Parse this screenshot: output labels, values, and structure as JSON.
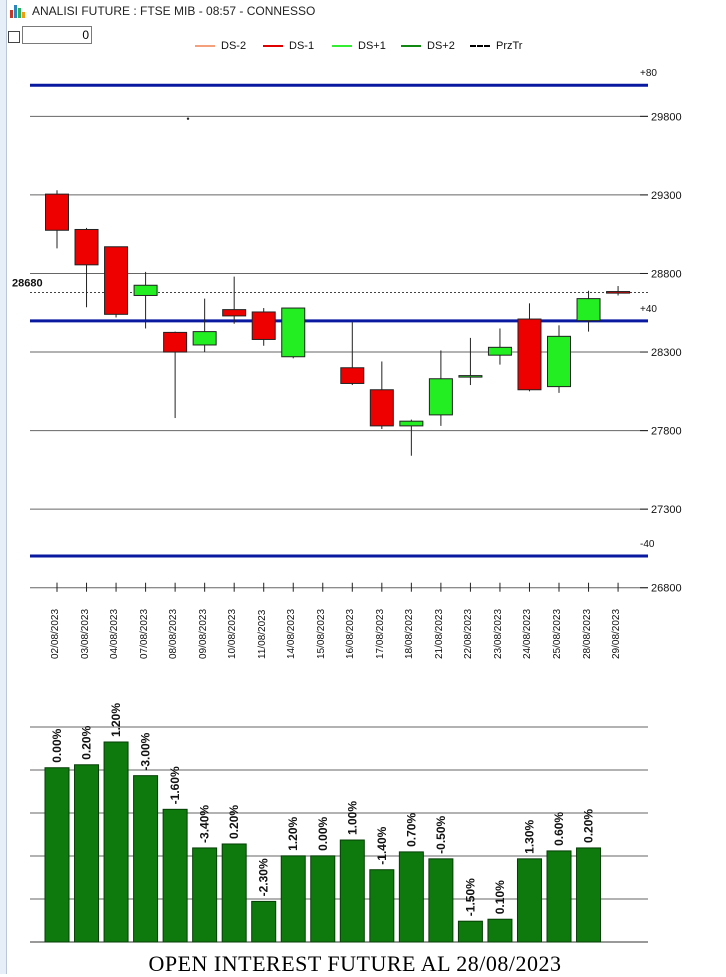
{
  "window": {
    "title": "ANALISI FUTURE : FTSE MIB - 08:57 - CONNESSO"
  },
  "controls": {
    "number_value": "0"
  },
  "legend": [
    {
      "label": "DS-2",
      "color": "#f4a07c",
      "style": "solid"
    },
    {
      "label": "DS-1",
      "color": "#e00000",
      "style": "solid"
    },
    {
      "label": "DS+1",
      "color": "#33ee33",
      "style": "solid"
    },
    {
      "label": "DS+2",
      "color": "#118811",
      "style": "solid"
    },
    {
      "label": "PrzTr",
      "color": "#000000",
      "style": "dashed"
    }
  ],
  "colors": {
    "up": "#22ee22",
    "down": "#ee0000",
    "band": "#0a1aa0",
    "bar": "#0e7a0e"
  },
  "chart_data": [
    {
      "type": "candlestick",
      "ylim": [
        26800,
        30000
      ],
      "yticks": [
        "29800",
        "29300",
        "28800",
        "28300",
        "27800",
        "27300",
        "26800"
      ],
      "grid": true,
      "reference_lines": [
        {
          "label": "+80",
          "value": 29998
        },
        {
          "label": "+40",
          "value": 28498
        },
        {
          "label": "-40",
          "value": 27002
        }
      ],
      "price_label": "28680",
      "price_value": 28679,
      "stray_point": 29785,
      "dates": [
        "02/08/2023",
        "03/08/2023",
        "04/08/2023",
        "07/08/2023",
        "08/08/2023",
        "09/08/2023",
        "10/08/2023",
        "11/08/2023",
        "14/08/2023",
        "15/08/2023",
        "16/08/2023",
        "17/08/2023",
        "18/08/2023",
        "21/08/2023",
        "22/08/2023",
        "23/08/2023",
        "24/08/2023",
        "25/08/2023",
        "28/08/2023",
        "29/08/2023"
      ],
      "ohlc": [
        [
          29305,
          29330,
          28960,
          29075
        ],
        [
          29080,
          29090,
          28585,
          28855
        ],
        [
          28970,
          28970,
          28520,
          28540
        ],
        [
          28660,
          28810,
          28450,
          28725
        ],
        [
          28425,
          28430,
          27880,
          28300
        ],
        [
          28345,
          28640,
          28300,
          28430
        ],
        [
          28570,
          28780,
          28480,
          28530
        ],
        [
          28555,
          28580,
          28340,
          28380
        ],
        [
          28270,
          28580,
          28260,
          28580
        ],
        null,
        [
          28200,
          28490,
          28090,
          28100
        ],
        [
          28060,
          28240,
          27810,
          27830
        ],
        [
          27830,
          27870,
          27640,
          27860
        ],
        [
          27900,
          28310,
          27830,
          28130
        ],
        [
          28150,
          28390,
          28090,
          28150
        ],
        [
          28280,
          28450,
          28220,
          28330
        ],
        [
          28510,
          28610,
          28050,
          28060
        ],
        [
          28080,
          28470,
          28040,
          28400
        ],
        [
          28500,
          28690,
          28430,
          28640
        ],
        [
          28685,
          28720,
          28660,
          28675
        ]
      ]
    },
    {
      "type": "bar",
      "title": "OPEN INTEREST FUTURE AL 28/08/2023",
      "labels": [
        "0.00%",
        "0.20%",
        "1.20%",
        "-3.00%",
        "-1.60%",
        "-3.40%",
        "0.20%",
        "-2.30%",
        "1.20%",
        "0.00%",
        "1.00%",
        "-1.40%",
        "0.70%",
        "-0.50%",
        "-1.50%",
        "0.10%",
        "1.30%",
        "0.60%",
        "0.20%"
      ],
      "values": [
        176,
        179,
        202,
        168,
        134,
        95,
        99,
        41,
        87,
        87,
        103,
        73,
        91,
        84,
        21,
        23,
        84,
        92,
        95
      ],
      "max": 202,
      "grid": true
    }
  ]
}
